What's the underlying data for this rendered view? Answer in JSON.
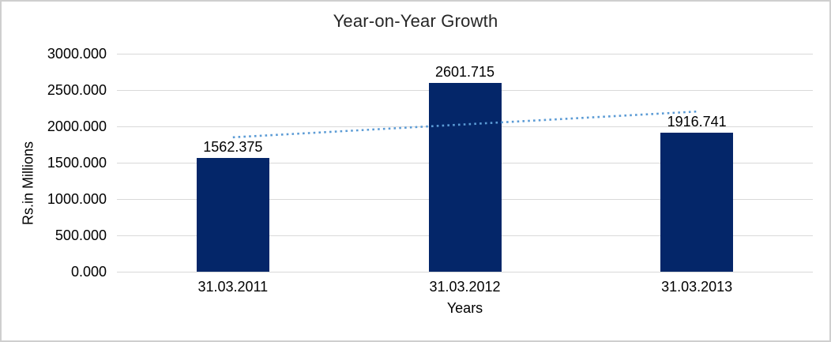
{
  "chart_data": {
    "type": "bar",
    "title": "Year-on-Year Growth",
    "xlabel": "Years",
    "ylabel": "Rs.in Millions",
    "categories": [
      "31.03.2011",
      "31.03.2012",
      "31.03.2013"
    ],
    "series": [
      {
        "name": "values-bars",
        "type": "bar",
        "color": "#042669",
        "values": [
          1562.375,
          2601.715,
          1916.741
        ],
        "data_labels": [
          "1562.375",
          "2601.715",
          "1916.741"
        ]
      },
      {
        "name": "linear-trendline",
        "type": "dotted-line",
        "color": "#5B9BD5",
        "values": [
          1850.1,
          2027.2,
          2204.4
        ]
      }
    ],
    "ylim": [
      0,
      3000
    ],
    "y_ticks": [
      0,
      500,
      1000,
      1500,
      2000,
      2500,
      3000
    ],
    "y_tick_labels": [
      "0.000",
      "500.000",
      "1000.000",
      "1500.000",
      "2000.000",
      "2500.000",
      "3000.000"
    ],
    "grid": true,
    "legend": "none",
    "colors": {
      "gridline": "#D9D9D9",
      "frame_border": "#CFCFCF",
      "background": "#FFFFFF",
      "axis_text": "#000000",
      "title_text": "#262626"
    }
  }
}
